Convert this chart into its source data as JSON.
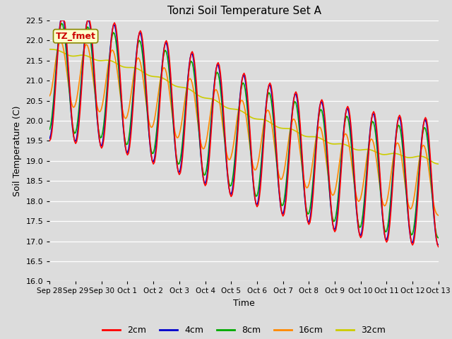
{
  "title": "Tonzi Soil Temperature Set A",
  "xlabel": "Time",
  "ylabel": "Soil Temperature (C)",
  "ylim": [
    16.0,
    22.5
  ],
  "yticks": [
    16.0,
    16.5,
    17.0,
    17.5,
    18.0,
    18.5,
    19.0,
    19.5,
    20.0,
    20.5,
    21.0,
    21.5,
    22.0,
    22.5
  ],
  "bg_color": "#dcdcdc",
  "annotation_text": "TZ_fmet",
  "annotation_bg": "#ffffcc",
  "annotation_border": "#888800",
  "annotation_text_color": "#cc0000",
  "colors": {
    "2cm": "#ff0000",
    "4cm": "#0000cc",
    "8cm": "#00aa00",
    "16cm": "#ff8800",
    "32cm": "#cccc00"
  },
  "line_width": 1.2,
  "xtick_labels": [
    "Sep 28",
    "Sep 29",
    "Sep 30",
    "Oct 1",
    "Oct 2",
    "Oct 3",
    "Oct 4",
    "Oct 5",
    "Oct 6",
    "Oct 7",
    "Oct 8",
    "Oct 9",
    "Oct 10",
    "Oct 11",
    "Oct 12",
    "Oct 13"
  ],
  "legend_labels": [
    "2cm",
    "4cm",
    "8cm",
    "16cm",
    "32cm"
  ]
}
